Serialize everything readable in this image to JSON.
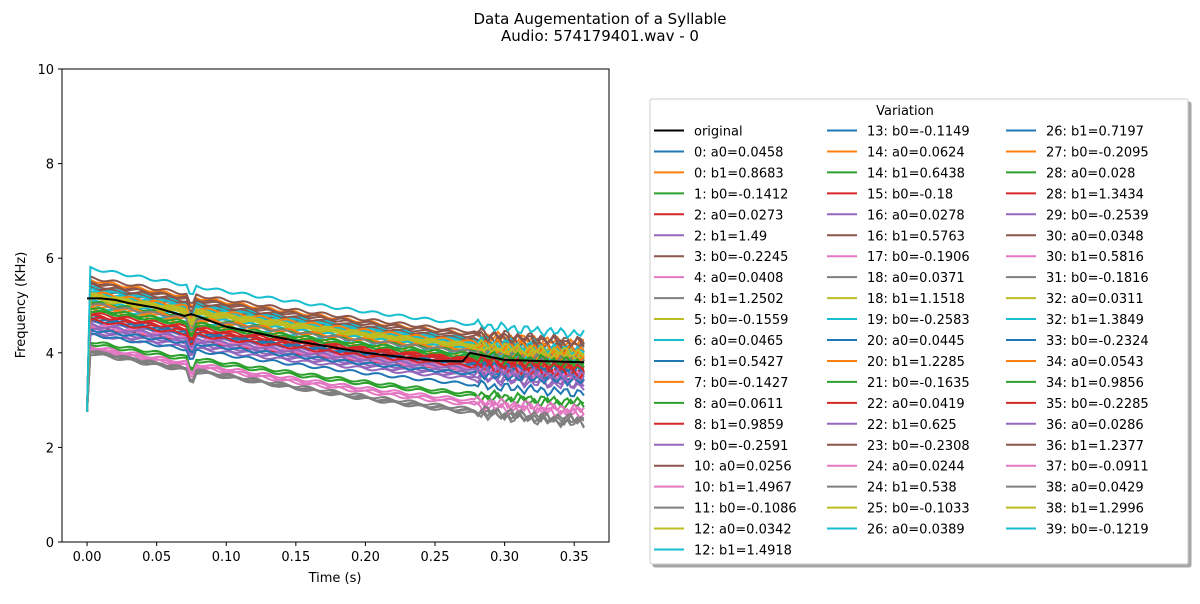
{
  "chart_data": {
    "type": "line",
    "title": "Data Augementation of a Syllable",
    "subtitle": "Audio: 574179401.wav - 0",
    "xlabel": "Time (s)",
    "ylabel": "Frequency (KHz)",
    "xlim": [
      -0.018,
      0.375
    ],
    "ylim": [
      0,
      10
    ],
    "xticks": [
      0.0,
      0.05,
      0.1,
      0.15,
      0.2,
      0.25,
      0.3,
      0.35
    ],
    "xtick_labels": [
      "0.00",
      "0.05",
      "0.10",
      "0.15",
      "0.20",
      "0.25",
      "0.30",
      "0.35"
    ],
    "yticks": [
      0,
      2,
      4,
      6,
      8,
      10
    ],
    "ytick_labels": [
      "0",
      "2",
      "4",
      "6",
      "8",
      "10"
    ],
    "grid": false,
    "legend": {
      "title": "Variation",
      "placement": "right, outside plot",
      "columns": 3
    },
    "x_range": [
      0.0,
      0.357
    ],
    "original": {
      "name": "original",
      "color": "#000000",
      "points": [
        [
          0.0,
          5.15
        ],
        [
          0.01,
          5.15
        ],
        [
          0.02,
          5.12
        ],
        [
          0.03,
          5.05
        ],
        [
          0.05,
          4.95
        ],
        [
          0.07,
          4.78
        ],
        [
          0.075,
          4.82
        ],
        [
          0.1,
          4.55
        ],
        [
          0.15,
          4.25
        ],
        [
          0.2,
          4.0
        ],
        [
          0.25,
          3.83
        ],
        [
          0.27,
          3.82
        ],
        [
          0.275,
          4.0
        ],
        [
          0.3,
          3.85
        ],
        [
          0.33,
          3.82
        ],
        [
          0.357,
          3.8
        ]
      ]
    },
    "series": [
      {
        "name": "0: a0=0.0458",
        "color": "#1f77b4",
        "start": 4.78,
        "end": 3.65
      },
      {
        "name": "0: b1=0.8683",
        "color": "#ff7f0e",
        "start": 5.1,
        "end": 3.95
      },
      {
        "name": "1: b0=-0.1412",
        "color": "#2ca02c",
        "start": 4.9,
        "end": 3.7
      },
      {
        "name": "2: a0=0.0273",
        "color": "#d62728",
        "start": 4.55,
        "end": 3.5
      },
      {
        "name": "2: b1=1.49",
        "color": "#9467bd",
        "start": 4.4,
        "end": 3.3
      },
      {
        "name": "3: b0=-0.2245",
        "color": "#8c564b",
        "start": 5.35,
        "end": 4.0
      },
      {
        "name": "4: a0=0.0408",
        "color": "#e377c2",
        "start": 4.7,
        "end": 3.55
      },
      {
        "name": "4: b1=1.2502",
        "color": "#7f7f7f",
        "start": 4.05,
        "end": 2.5
      },
      {
        "name": "5: b0=-0.1559",
        "color": "#bcbd22",
        "start": 5.2,
        "end": 3.9
      },
      {
        "name": "6: a0=0.0465",
        "color": "#17becf",
        "start": 5.3,
        "end": 4.05
      },
      {
        "name": "6: b1=0.5427",
        "color": "#1f77b4",
        "start": 4.4,
        "end": 3.15
      },
      {
        "name": "7: b0=-0.1427",
        "color": "#ff7f0e",
        "start": 4.95,
        "end": 3.75
      },
      {
        "name": "8: a0=0.0611",
        "color": "#2ca02c",
        "start": 4.2,
        "end": 2.9
      },
      {
        "name": "8: b1=0.9859",
        "color": "#d62728",
        "start": 4.85,
        "end": 3.7
      },
      {
        "name": "9: b0=-0.2591",
        "color": "#9467bd",
        "start": 4.5,
        "end": 3.4
      },
      {
        "name": "10: a0=0.0256",
        "color": "#8c564b",
        "start": 5.45,
        "end": 4.1
      },
      {
        "name": "10: b1=1.4967",
        "color": "#e377c2",
        "start": 4.1,
        "end": 2.75
      },
      {
        "name": "11: b0=-0.1086",
        "color": "#7f7f7f",
        "start": 5.05,
        "end": 3.85
      },
      {
        "name": "12: a0=0.0342",
        "color": "#bcbd22",
        "start": 5.2,
        "end": 3.95
      },
      {
        "name": "12: b1=1.4918",
        "color": "#17becf",
        "start": 5.1,
        "end": 3.9
      },
      {
        "name": "13: b0=-0.1149",
        "color": "#1f77b4",
        "start": 4.6,
        "end": 3.5
      },
      {
        "name": "14: a0=0.0624",
        "color": "#ff7f0e",
        "start": 5.55,
        "end": 4.2
      },
      {
        "name": "14: b1=0.6438",
        "color": "#2ca02c",
        "start": 4.25,
        "end": 2.95
      },
      {
        "name": "15: b0=-0.18",
        "color": "#d62728",
        "start": 4.75,
        "end": 3.6
      },
      {
        "name": "16: a0=0.0278",
        "color": "#9467bd",
        "start": 4.65,
        "end": 3.55
      },
      {
        "name": "16: b1=0.5763",
        "color": "#8c564b",
        "start": 5.6,
        "end": 4.25
      },
      {
        "name": "17: b0=-0.1906",
        "color": "#e377c2",
        "start": 4.15,
        "end": 2.8
      },
      {
        "name": "18: a0=0.0371",
        "color": "#7f7f7f",
        "start": 4.0,
        "end": 2.55
      },
      {
        "name": "18: b1=1.1518",
        "color": "#bcbd22",
        "start": 5.25,
        "end": 4.0
      },
      {
        "name": "19: b0=-0.2583",
        "color": "#17becf",
        "start": 5.0,
        "end": 3.8
      },
      {
        "name": "20: a0=0.0445",
        "color": "#1f77b4",
        "start": 4.7,
        "end": 3.6
      },
      {
        "name": "20: b1=1.2285",
        "color": "#ff7f0e",
        "start": 5.0,
        "end": 3.9
      },
      {
        "name": "21: b0=-0.1635",
        "color": "#2ca02c",
        "start": 5.1,
        "end": 3.85
      },
      {
        "name": "22: a0=0.0419",
        "color": "#d62728",
        "start": 4.8,
        "end": 3.65
      },
      {
        "name": "22: b1=0.625",
        "color": "#9467bd",
        "start": 4.45,
        "end": 3.35
      },
      {
        "name": "23: b0=-0.2308",
        "color": "#8c564b",
        "start": 5.5,
        "end": 4.15
      },
      {
        "name": "24: a0=0.0244",
        "color": "#e377c2",
        "start": 4.6,
        "end": 3.5
      },
      {
        "name": "24: b1=0.538",
        "color": "#7f7f7f",
        "start": 4.05,
        "end": 2.55
      },
      {
        "name": "25: b0=-0.1033",
        "color": "#bcbd22",
        "start": 5.15,
        "end": 3.95
      },
      {
        "name": "26: a0=0.0389",
        "color": "#17becf",
        "start": 5.4,
        "end": 4.1
      },
      {
        "name": "26: b1=0.7197",
        "color": "#1f77b4",
        "start": 4.75,
        "end": 3.6
      },
      {
        "name": "27: b0=-0.2095",
        "color": "#ff7f0e",
        "start": 5.05,
        "end": 3.9
      },
      {
        "name": "28: a0=0.028",
        "color": "#2ca02c",
        "start": 4.9,
        "end": 3.75
      },
      {
        "name": "28: b1=1.3434",
        "color": "#d62728",
        "start": 4.8,
        "end": 3.7
      },
      {
        "name": "29: b0=-0.2539",
        "color": "#9467bd",
        "start": 4.55,
        "end": 3.45
      },
      {
        "name": "30: a0=0.0348",
        "color": "#8c564b",
        "start": 5.4,
        "end": 4.1
      },
      {
        "name": "30: b1=0.5816",
        "color": "#e377c2",
        "start": 4.6,
        "end": 3.5
      },
      {
        "name": "31: b0=-0.1816",
        "color": "#7f7f7f",
        "start": 5.05,
        "end": 3.85
      },
      {
        "name": "32: a0=0.0311",
        "color": "#bcbd22",
        "start": 5.2,
        "end": 3.95
      },
      {
        "name": "32: b1=1.3849",
        "color": "#17becf",
        "start": 5.35,
        "end": 4.05
      },
      {
        "name": "33: b0=-0.2324",
        "color": "#1f77b4",
        "start": 4.5,
        "end": 3.4
      },
      {
        "name": "34: a0=0.0543",
        "color": "#ff7f0e",
        "start": 5.3,
        "end": 4.05
      },
      {
        "name": "34: b1=0.9856",
        "color": "#2ca02c",
        "start": 4.95,
        "end": 3.8
      },
      {
        "name": "35: b0=-0.2285",
        "color": "#d62728",
        "start": 4.7,
        "end": 3.55
      },
      {
        "name": "36: a0=0.0286",
        "color": "#9467bd",
        "start": 4.6,
        "end": 3.5
      },
      {
        "name": "36: b1=1.2377",
        "color": "#8c564b",
        "start": 5.5,
        "end": 4.2
      },
      {
        "name": "37: b0=-0.0911",
        "color": "#e377c2",
        "start": 4.1,
        "end": 2.7
      },
      {
        "name": "38: a0=0.0429",
        "color": "#7f7f7f",
        "start": 4.05,
        "end": 2.6
      },
      {
        "name": "38: b1=1.2996",
        "color": "#bcbd22",
        "start": 5.25,
        "end": 4.0
      },
      {
        "name": "39: b0=-0.1219",
        "color": "#17becf",
        "start": 5.8,
        "end": 4.4
      }
    ]
  }
}
